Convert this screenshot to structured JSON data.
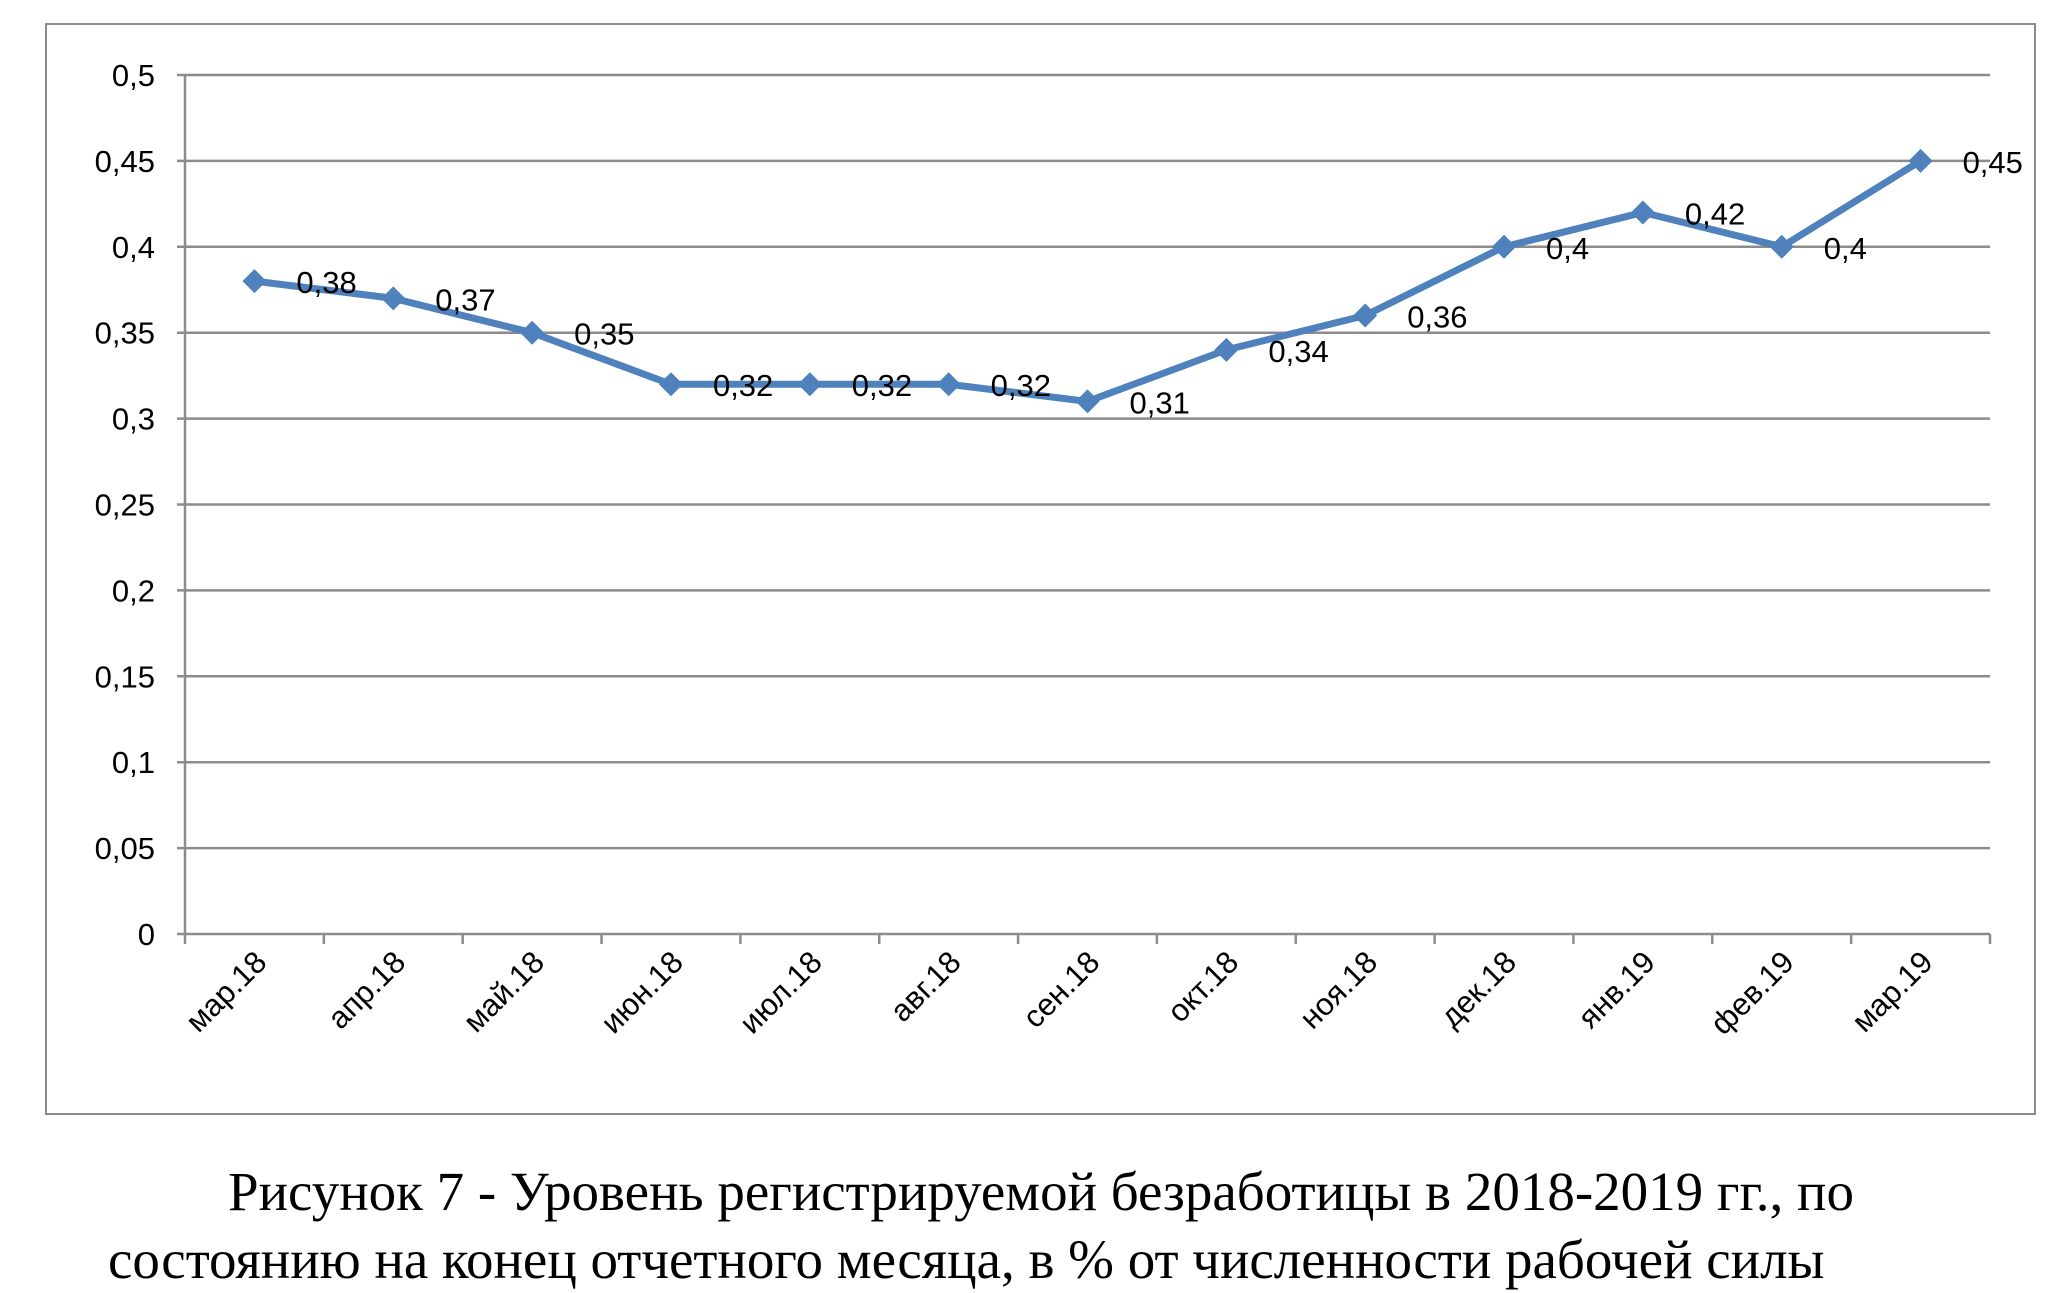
{
  "chart_data": {
    "type": "line",
    "categories": [
      "мар.18",
      "апр.18",
      "май.18",
      "июн.18",
      "июл.18",
      "авг.18",
      "сен.18",
      "окт.18",
      "ноя.18",
      "дек.18",
      "янв.19",
      "фев.19",
      "мар.19"
    ],
    "values": [
      0.38,
      0.37,
      0.35,
      0.32,
      0.32,
      0.32,
      0.31,
      0.34,
      0.36,
      0.4,
      0.42,
      0.4,
      0.45
    ],
    "data_labels": [
      "0,38",
      "0,37",
      "0,35",
      "0,32",
      "0,32",
      "0,32",
      "0,31",
      "0,34",
      "0,36",
      "0,4",
      "0,42",
      "0,4",
      "0,45"
    ],
    "yticks": [
      0,
      0.05,
      0.1,
      0.15,
      0.2,
      0.25,
      0.3,
      0.35,
      0.4,
      0.45,
      0.5
    ],
    "ytick_labels": [
      "0",
      "0,05",
      "0,1",
      "0,15",
      "0,2",
      "0,25",
      "0,3",
      "0,35",
      "0,4",
      "0,45",
      "0,5"
    ],
    "ylim": [
      0,
      0.5
    ],
    "grid": true,
    "legend": "none",
    "title": "",
    "xlabel": "",
    "ylabel": "",
    "series_color": "#4f81bd",
    "grid_color": "#8c8c8c"
  },
  "caption": {
    "line1": "Рисунок 7 - Уровень регистрируемой безработицы в 2018-2019 гг., по",
    "line2": "состоянию на конец отчетного месяца, в % от численности рабочей силы"
  }
}
